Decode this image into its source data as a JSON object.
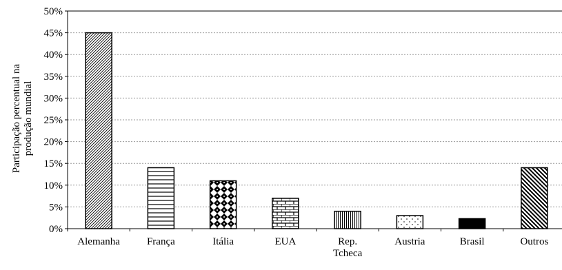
{
  "chart_data": {
    "type": "bar",
    "categories": [
      "Alemanha",
      "França",
      "Itália",
      "EUA",
      "Rep. Tcheca",
      "Austria",
      "Brasil",
      "Outros"
    ],
    "category_label_lines": [
      [
        "Alemanha"
      ],
      [
        "França"
      ],
      [
        "Itália"
      ],
      [
        "EUA"
      ],
      [
        "Rep.",
        "Tcheca"
      ],
      [
        "Austria"
      ],
      [
        "Brasil"
      ],
      [
        "Outros"
      ]
    ],
    "values": [
      45,
      14,
      11,
      7,
      4,
      3,
      2.3,
      14
    ],
    "patterns": [
      "diag-dense",
      "horizontal",
      "diamond",
      "brick",
      "vertical",
      "dots",
      "solid",
      "diag-thick"
    ],
    "ylabel_lines": [
      "Participação percentual na",
      "produção mundial"
    ],
    "ylim": [
      0,
      50
    ],
    "yticks": [
      0,
      5,
      10,
      15,
      20,
      25,
      30,
      35,
      40,
      45,
      50
    ],
    "ytick_labels": [
      "0%",
      "5%",
      "10%",
      "15%",
      "20%",
      "25%",
      "30%",
      "35%",
      "40%",
      "45%",
      "50%"
    ],
    "grid": true
  }
}
